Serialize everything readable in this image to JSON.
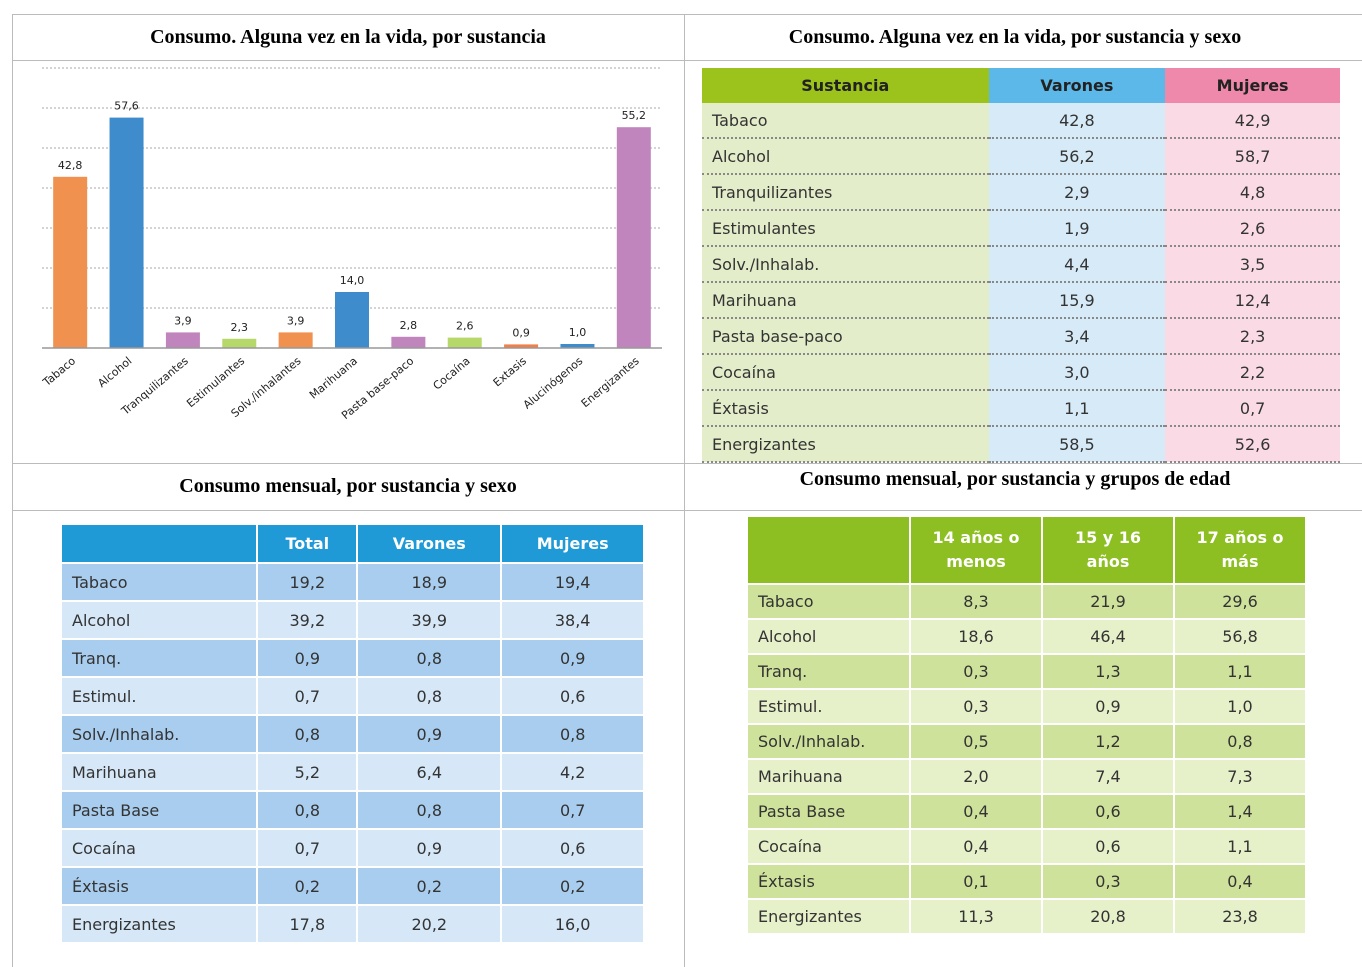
{
  "chart_data": {
    "type": "bar",
    "title": "Consumo. Alguna vez en la vida, por sustancia",
    "categories": [
      "Tabaco",
      "Alcohol",
      "Tranquilizantes",
      "Estimulantes",
      "Solv./inhalantes",
      "Marihuana",
      "Pasta base-paco",
      "Cocaína",
      "Extasis",
      "Alucinógenos",
      "Energizantes"
    ],
    "values": [
      42.8,
      57.6,
      3.9,
      2.3,
      3.9,
      14.0,
      2.8,
      2.6,
      0.9,
      1.0,
      55.2
    ],
    "value_labels": [
      "42,8",
      "57,6",
      "3,9",
      "2,3",
      "3,9",
      "14,0",
      "2,8",
      "2,6",
      "0,9",
      "1,0",
      "55,2"
    ],
    "colors": [
      "#f0914f",
      "#3f8ccc",
      "#c085bd",
      "#b6d86a",
      "#f0914f",
      "#3f8ccc",
      "#c085bd",
      "#b6d86a",
      "#f07f4a",
      "#3f8ccc",
      "#c085bd"
    ],
    "ylim": [
      0,
      70
    ],
    "yticks": [
      0,
      10,
      20,
      30,
      40,
      50,
      60,
      70
    ],
    "grid": true
  },
  "tables": [
    {
      "title": "Consumo. Alguna vez en la vida, por sustancia y sexo",
      "columns": [
        "Sustancia",
        "Varones",
        "Mujeres"
      ],
      "rows": [
        [
          "Tabaco",
          "42,8",
          "42,9"
        ],
        [
          "Alcohol",
          "56,2",
          "58,7"
        ],
        [
          "Tranquilizantes",
          "2,9",
          "4,8"
        ],
        [
          "Estimulantes",
          "1,9",
          "2,6"
        ],
        [
          "Solv./Inhalab.",
          "4,4",
          "3,5"
        ],
        [
          "Marihuana",
          "15,9",
          "12,4"
        ],
        [
          "Pasta base-paco",
          "3,4",
          "2,3"
        ],
        [
          "Cocaína",
          "3,0",
          "2,2"
        ],
        [
          "Éxtasis",
          "1,1",
          "0,7"
        ],
        [
          "Energizantes",
          "58,5",
          "52,6"
        ]
      ]
    },
    {
      "title": "Consumo mensual, por sustancia y sexo",
      "columns": [
        "Total",
        "Varones",
        "Mujeres"
      ],
      "rows": [
        [
          "Tabaco",
          "19,2",
          "18,9",
          "19,4"
        ],
        [
          "Alcohol",
          "39,2",
          "39,9",
          "38,4"
        ],
        [
          "Tranq.",
          "0,9",
          "0,8",
          "0,9"
        ],
        [
          "Estimul.",
          "0,7",
          "0,8",
          "0,6"
        ],
        [
          "Solv./Inhalab.",
          "0,8",
          "0,9",
          "0,8"
        ],
        [
          "Marihuana",
          "5,2",
          "6,4",
          "4,2"
        ],
        [
          "Pasta Base",
          "0,8",
          "0,8",
          "0,7"
        ],
        [
          "Cocaína",
          "0,7",
          "0,9",
          "0,6"
        ],
        [
          "Éxtasis",
          "0,2",
          "0,2",
          "0,2"
        ],
        [
          "Energizantes",
          "17,8",
          "20,2",
          "16,0"
        ]
      ]
    },
    {
      "title": "Consumo mensual, por sustancia y grupos de edad",
      "columns": [
        "14 años o menos",
        "15 y 16 años",
        "17 años o más"
      ],
      "rows": [
        [
          "Tabaco",
          "8,3",
          "21,9",
          "29,6"
        ],
        [
          "Alcohol",
          "18,6",
          "46,4",
          "56,8"
        ],
        [
          "Tranq.",
          "0,3",
          "1,3",
          "1,1"
        ],
        [
          "Estimul.",
          "0,3",
          "0,9",
          "1,0"
        ],
        [
          "Solv./Inhalab.",
          "0,5",
          "1,2",
          "0,8"
        ],
        [
          "Marihuana",
          "2,0",
          "7,4",
          "7,3"
        ],
        [
          "Pasta Base",
          "0,4",
          "0,6",
          "1,4"
        ],
        [
          "Cocaína",
          "0,4",
          "0,6",
          "1,1"
        ],
        [
          "Éxtasis",
          "0,1",
          "0,3",
          "0,4"
        ],
        [
          "Energizantes",
          "11,3",
          "20,8",
          "23,8"
        ]
      ]
    }
  ]
}
